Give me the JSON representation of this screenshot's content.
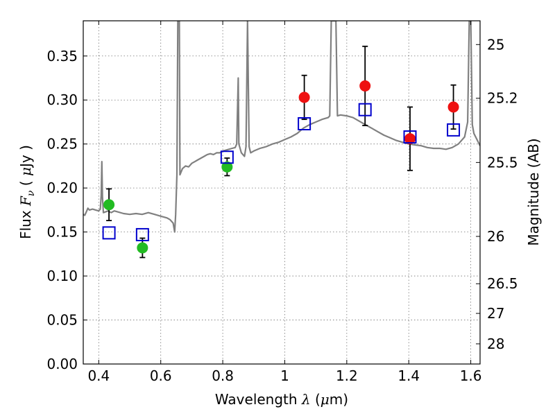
{
  "chart_data": {
    "type": "scatter",
    "xlabel": {
      "prefix": "Wavelength  ",
      "symbol": "λ",
      "unit_open": " (",
      "unit_sym": "μ",
      "unit_close": "m)"
    },
    "ylabel": {
      "prefix": "Flux  ",
      "symbol": "F",
      "sub": "ν",
      "unit_open": "  ( ",
      "unit_sym": "μ",
      "unit_close": "Jy )"
    },
    "y2label": "Magnitude (AB)",
    "xlim": [
      0.35,
      1.63
    ],
    "ylim": [
      0.0,
      0.39
    ],
    "grid": true,
    "x_ticks": [
      0.4,
      0.6,
      0.8,
      1.0,
      1.2,
      1.4,
      1.6
    ],
    "x_tick_labels": [
      "0.4",
      "0.6",
      "0.8",
      "1",
      "1.2",
      "1.4",
      "1.6"
    ],
    "y_ticks": [
      0.0,
      0.05,
      0.1,
      0.15,
      0.2,
      0.25,
      0.3,
      0.35
    ],
    "y_tick_labels": [
      "0.00",
      "0.05",
      "0.10",
      "0.15",
      "0.20",
      "0.25",
      "0.30",
      "0.35"
    ],
    "y2_tick_labels": [
      "25",
      "25.2",
      "25.5",
      "26",
      "26.5",
      "27",
      "28"
    ],
    "y2_tick_flux": [
      0.363,
      0.302,
      0.229,
      0.145,
      0.0912,
      0.0575,
      0.0229
    ],
    "colors": {
      "template": "#808080",
      "model": "#0000cc",
      "green": "#22bb22",
      "red": "#ee1111",
      "errorbar": "#000000"
    },
    "series": [
      {
        "kind": "template_spectrum",
        "points": [
          [
            0.35,
            0.17
          ],
          [
            0.355,
            0.169
          ],
          [
            0.36,
            0.173
          ],
          [
            0.365,
            0.177
          ],
          [
            0.37,
            0.175
          ],
          [
            0.38,
            0.176
          ],
          [
            0.39,
            0.175
          ],
          [
            0.4,
            0.174
          ],
          [
            0.405,
            0.176
          ],
          [
            0.408,
            0.192
          ],
          [
            0.41,
            0.23
          ],
          [
            0.412,
            0.19
          ],
          [
            0.415,
            0.172
          ],
          [
            0.43,
            0.174
          ],
          [
            0.44,
            0.172
          ],
          [
            0.45,
            0.174
          ],
          [
            0.46,
            0.173
          ],
          [
            0.48,
            0.171
          ],
          [
            0.5,
            0.17
          ],
          [
            0.52,
            0.171
          ],
          [
            0.54,
            0.17
          ],
          [
            0.56,
            0.172
          ],
          [
            0.58,
            0.17
          ],
          [
            0.6,
            0.168
          ],
          [
            0.62,
            0.166
          ],
          [
            0.63,
            0.164
          ],
          [
            0.64,
            0.16
          ],
          [
            0.645,
            0.15
          ],
          [
            0.648,
            0.17
          ],
          [
            0.652,
            0.215
          ],
          [
            0.655,
            0.39
          ],
          [
            0.66,
            0.39
          ],
          [
            0.662,
            0.215
          ],
          [
            0.67,
            0.222
          ],
          [
            0.68,
            0.225
          ],
          [
            0.69,
            0.224
          ],
          [
            0.7,
            0.228
          ],
          [
            0.71,
            0.23
          ],
          [
            0.72,
            0.232
          ],
          [
            0.73,
            0.234
          ],
          [
            0.74,
            0.236
          ],
          [
            0.75,
            0.238
          ],
          [
            0.76,
            0.239
          ],
          [
            0.77,
            0.238
          ],
          [
            0.78,
            0.24
          ],
          [
            0.79,
            0.24
          ],
          [
            0.8,
            0.242
          ],
          [
            0.81,
            0.243
          ],
          [
            0.82,
            0.244
          ],
          [
            0.83,
            0.245
          ],
          [
            0.84,
            0.246
          ],
          [
            0.845,
            0.25
          ],
          [
            0.85,
            0.325
          ],
          [
            0.852,
            0.25
          ],
          [
            0.86,
            0.24
          ],
          [
            0.87,
            0.236
          ],
          [
            0.875,
            0.247
          ],
          [
            0.88,
            0.39
          ],
          [
            0.885,
            0.247
          ],
          [
            0.89,
            0.24
          ],
          [
            0.9,
            0.242
          ],
          [
            0.92,
            0.245
          ],
          [
            0.94,
            0.247
          ],
          [
            0.96,
            0.25
          ],
          [
            0.98,
            0.252
          ],
          [
            1.0,
            0.255
          ],
          [
            1.02,
            0.258
          ],
          [
            1.04,
            0.262
          ],
          [
            1.06,
            0.268
          ],
          [
            1.08,
            0.272
          ],
          [
            1.1,
            0.275
          ],
          [
            1.12,
            0.278
          ],
          [
            1.14,
            0.28
          ],
          [
            1.145,
            0.282
          ],
          [
            1.15,
            0.39
          ],
          [
            1.165,
            0.39
          ],
          [
            1.17,
            0.282
          ],
          [
            1.18,
            0.283
          ],
          [
            1.2,
            0.282
          ],
          [
            1.22,
            0.28
          ],
          [
            1.24,
            0.276
          ],
          [
            1.26,
            0.272
          ],
          [
            1.28,
            0.268
          ],
          [
            1.3,
            0.264
          ],
          [
            1.32,
            0.26
          ],
          [
            1.34,
            0.257
          ],
          [
            1.36,
            0.254
          ],
          [
            1.38,
            0.252
          ],
          [
            1.4,
            0.25
          ],
          [
            1.42,
            0.249
          ],
          [
            1.44,
            0.248
          ],
          [
            1.46,
            0.246
          ],
          [
            1.48,
            0.245
          ],
          [
            1.5,
            0.245
          ],
          [
            1.52,
            0.244
          ],
          [
            1.54,
            0.246
          ],
          [
            1.56,
            0.25
          ],
          [
            1.58,
            0.258
          ],
          [
            1.59,
            0.275
          ],
          [
            1.595,
            0.39
          ],
          [
            1.6,
            0.39
          ],
          [
            1.605,
            0.272
          ],
          [
            1.61,
            0.262
          ],
          [
            1.62,
            0.255
          ],
          [
            1.63,
            0.248
          ]
        ]
      },
      {
        "kind": "model_photometry",
        "points": [
          [
            0.433,
            0.149
          ],
          [
            0.541,
            0.147
          ],
          [
            0.814,
            0.235
          ],
          [
            1.063,
            0.273
          ],
          [
            1.259,
            0.289
          ],
          [
            1.404,
            0.258
          ],
          [
            1.544,
            0.266
          ]
        ]
      },
      {
        "kind": "observed_green",
        "points": [
          [
            0.433,
            0.181,
            0.018
          ],
          [
            0.541,
            0.132,
            0.011
          ],
          [
            0.814,
            0.224,
            0.01
          ]
        ]
      },
      {
        "kind": "observed_red",
        "points": [
          [
            1.063,
            0.303,
            0.025
          ],
          [
            1.259,
            0.316,
            0.045
          ],
          [
            1.404,
            0.256,
            0.036
          ],
          [
            1.544,
            0.292,
            0.025
          ]
        ]
      }
    ]
  }
}
